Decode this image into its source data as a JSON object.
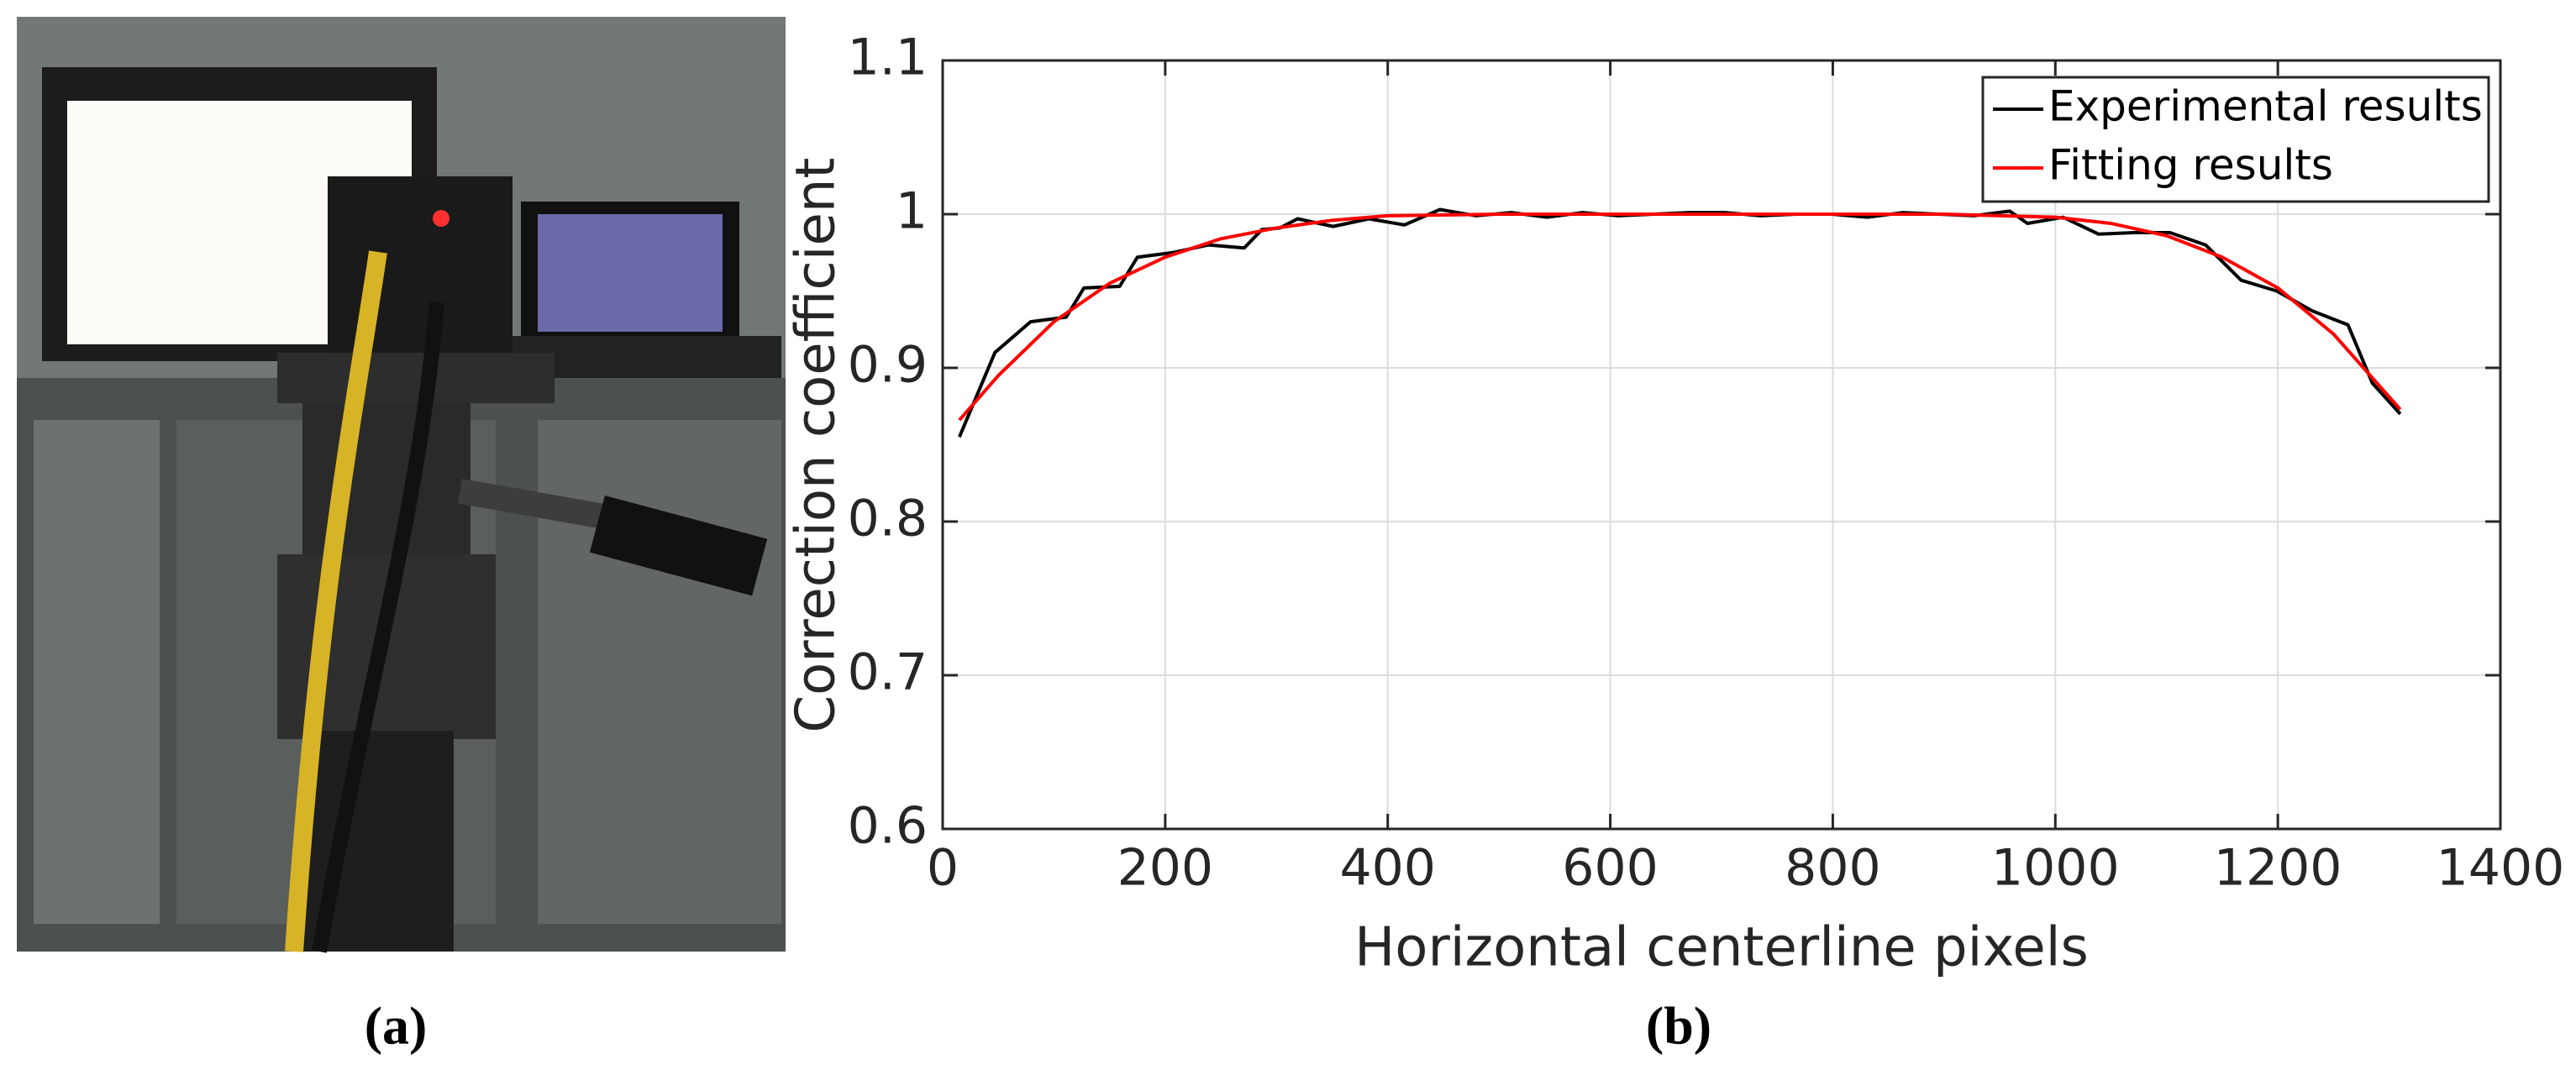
{
  "panel_labels": [
    "(a)",
    "(b)"
  ],
  "chart_data": {
    "type": "line",
    "xlabel": "Horizontal centerline pixels",
    "ylabel": "Correction coefficient",
    "xlim": [
      0,
      1400
    ],
    "xticks": [
      0,
      200,
      400,
      600,
      800,
      1000,
      1200,
      1400
    ],
    "ylim": [
      0.6,
      1.1
    ],
    "yticks": [
      0.6,
      0.7,
      0.8,
      0.9,
      1,
      1.1
    ],
    "grid": true,
    "legend": "upper right",
    "series": [
      {
        "name": "Experimental results",
        "color": "#000000",
        "x": [
          15,
          47,
          79,
          111,
          127,
          159,
          175,
          207,
          239,
          271,
          287,
          303,
          319,
          351,
          383,
          415,
          447,
          479,
          511,
          543,
          575,
          607,
          639,
          671,
          703,
          735,
          767,
          799,
          831,
          863,
          895,
          927,
          959,
          975,
          1007,
          1039,
          1071,
          1103,
          1135,
          1167,
          1199,
          1231,
          1263,
          1285,
          1295,
          1310
        ],
        "values": [
          0.855,
          0.91,
          0.93,
          0.933,
          0.952,
          0.953,
          0.972,
          0.975,
          0.98,
          0.978,
          0.99,
          0.991,
          0.997,
          0.992,
          0.997,
          0.993,
          1.003,
          0.999,
          1.001,
          0.998,
          1.001,
          0.999,
          1.0,
          1.001,
          1.001,
          0.999,
          1.0,
          1.0,
          0.998,
          1.001,
          1.0,
          0.999,
          1.002,
          0.994,
          0.998,
          0.987,
          0.988,
          0.988,
          0.98,
          0.957,
          0.95,
          0.937,
          0.928,
          0.89,
          0.882,
          0.87
        ]
      },
      {
        "name": "Fitting results",
        "color": "#ff0000",
        "x": [
          15,
          50,
          100,
          150,
          200,
          250,
          300,
          350,
          400,
          500,
          600,
          700,
          800,
          900,
          1000,
          1050,
          1100,
          1150,
          1200,
          1250,
          1310
        ],
        "values": [
          0.866,
          0.895,
          0.93,
          0.955,
          0.972,
          0.984,
          0.991,
          0.996,
          0.999,
          1.0,
          1.0,
          1.0,
          1.0,
          1.0,
          0.998,
          0.994,
          0.986,
          0.972,
          0.952,
          0.922,
          0.873
        ]
      }
    ]
  }
}
